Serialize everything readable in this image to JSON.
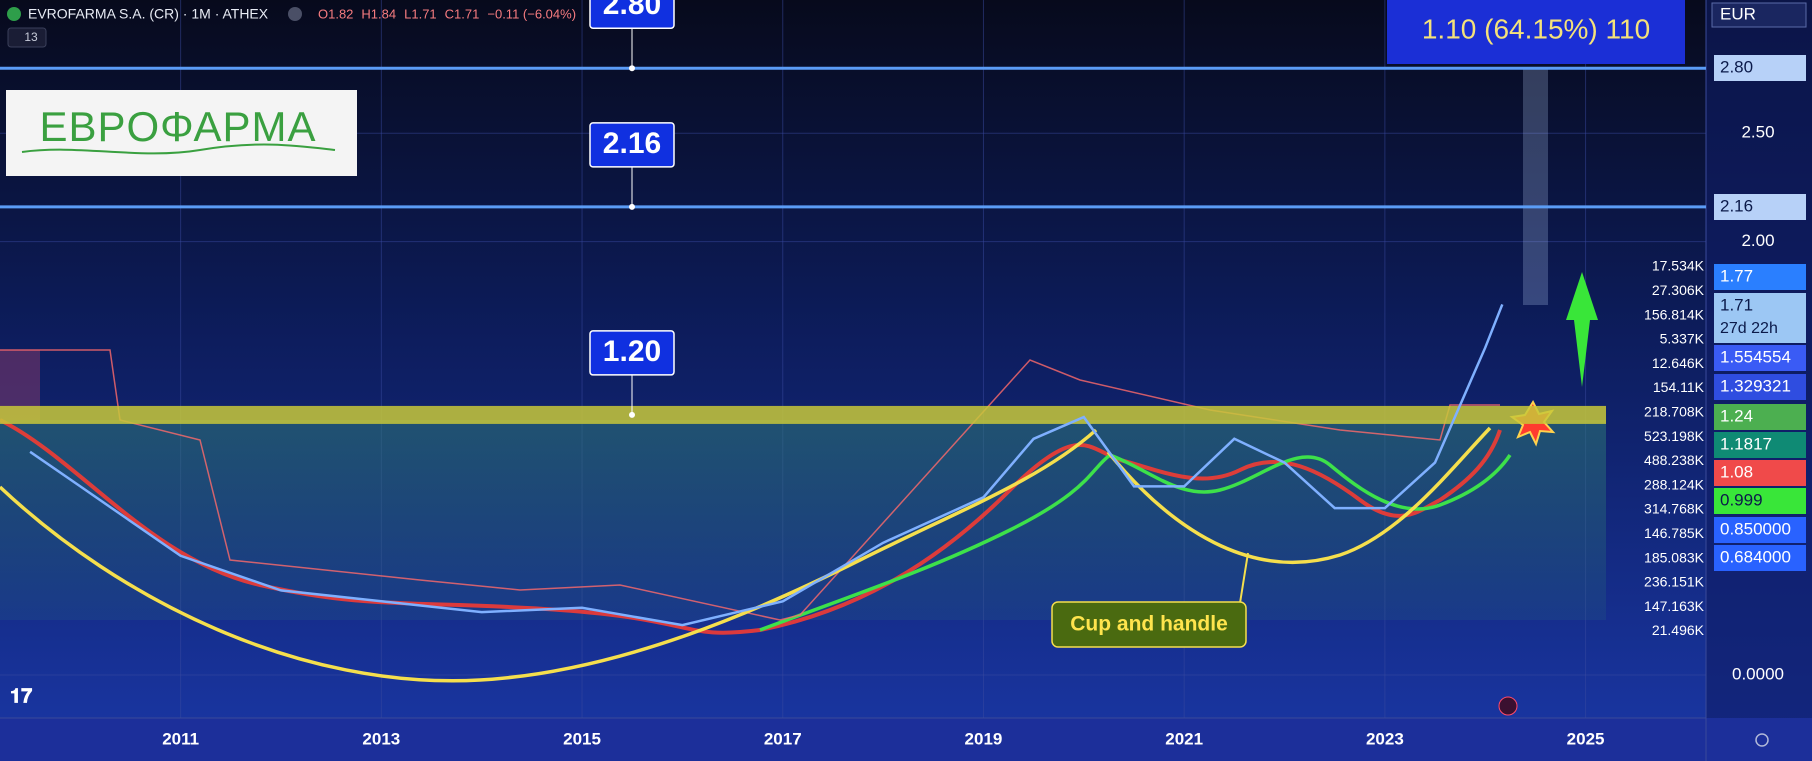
{
  "header": {
    "symbol": "EVROFARMA S.A. (CR) · 1M · ATHEX",
    "ohlc": [
      "O1.82",
      "H1.84",
      "L1.71",
      "C1.71",
      "−0.11 (−6.04%)"
    ],
    "indicators": "13"
  },
  "logo": "ΕΒΡΟΦΑΡΜΑ",
  "currency": "EUR",
  "chart_data": {
    "type": "line",
    "x": [
      2009.5,
      2010,
      2011,
      2012,
      2013,
      2014,
      2015,
      2016,
      2017,
      2018,
      2019,
      2019.5,
      2020,
      2020.5,
      2021,
      2021.5,
      2022,
      2022.5,
      2023,
      2023.5,
      2024,
      2024.17
    ],
    "values": [
      1.03,
      0.87,
      0.55,
      0.39,
      0.34,
      0.29,
      0.31,
      0.23,
      0.34,
      0.61,
      0.82,
      1.09,
      1.19,
      0.87,
      0.87,
      1.09,
      0.98,
      0.77,
      0.77,
      0.98,
      1.51,
      1.71
    ],
    "color": "#7fb0ff",
    "xlim": [
      2009.2,
      2026.2
    ],
    "ylim": [
      -0.2,
      3.1
    ],
    "xticks": [
      2011,
      2013,
      2015,
      2017,
      2019,
      2021,
      2023,
      2025
    ],
    "yticks": [
      {
        "value": 0,
        "label": "0.0000"
      },
      {
        "value": 2,
        "label": "2.00"
      },
      {
        "value": 2.5,
        "label": "2.50"
      }
    ],
    "grid": true,
    "levels": [
      {
        "value": 2.8,
        "label": "2.80"
      },
      {
        "value": 2.16,
        "label": "2.16"
      },
      {
        "value": 1.2,
        "label": "1.20"
      }
    ]
  },
  "badges": [
    {
      "text": "2.80",
      "color": "#b7d1f8",
      "ink": "#0b1a4a"
    },
    {
      "text": "2.16",
      "color": "#b7d1f8",
      "ink": "#0b1a4a"
    },
    {
      "text": "1.77",
      "color": "#2a7fff",
      "ink": "#ffffff"
    },
    {
      "text": "1.71",
      "sub": "27d 22h",
      "color": "#9cc7f4",
      "ink": "#0b1a4a"
    },
    {
      "text": "1.554554",
      "color": "#3a5bf5",
      "ink": "#ffffff"
    },
    {
      "text": "1.329321",
      "color": "#2f4de0",
      "ink": "#ffffff"
    },
    {
      "text": "1.24",
      "color": "#4caf50",
      "ink": "#ffffff"
    },
    {
      "text": "1.1817",
      "color": "#0f8a74",
      "ink": "#ffffff"
    },
    {
      "text": "1.08",
      "color": "#f04a4a",
      "ink": "#ffffff"
    },
    {
      "text": "0.999",
      "color": "#39e639",
      "ink": "#0b1a4a"
    },
    {
      "text": "0.850000",
      "color": "#2962ff",
      "ink": "#ffffff"
    },
    {
      "text": "0.684000",
      "color": "#2962ff",
      "ink": "#ffffff"
    }
  ],
  "volume_labels": [
    "17.534K",
    "27.306K",
    "156.814K",
    "5.337K",
    "12.646K",
    "154.11K",
    "218.708K",
    "523.198K",
    "488.238K",
    "288.124K",
    "314.768K",
    "146.785K",
    "185.083K",
    "236.151K",
    "147.163K",
    "21.496K"
  ],
  "annotations": {
    "measure": "1.10 (64.15%) 110",
    "pattern": "Cup and handle"
  }
}
